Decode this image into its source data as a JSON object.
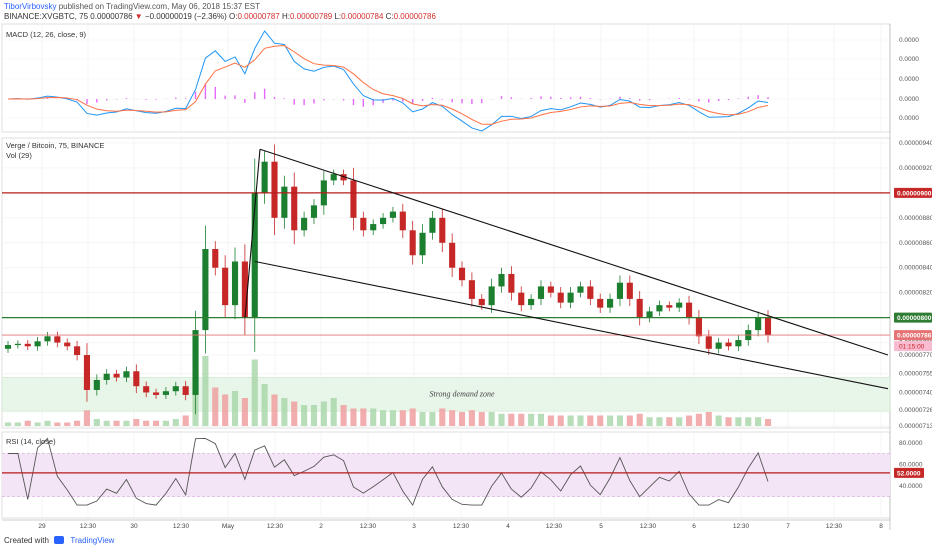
{
  "header": {
    "author": "TiborVirbovsky",
    "published_text": "published on TradingView.com, May 06, 2018 15:37 EST",
    "symbol_line": "BINANCE:XVGBTC, 75",
    "last": "0.00000786",
    "change": "−0.00000019 (−2.36%)",
    "o_label": "O:",
    "o_value": "0.00000787",
    "h_label": "H:",
    "h_value": "0.00000789",
    "l_label": "L:",
    "l_value": "0.00000784",
    "c_label": "C:",
    "c_value": "0.00000786"
  },
  "footer": {
    "created_with": "Created with",
    "brand": "TradingView"
  },
  "colors": {
    "up": "#26a69a",
    "down": "#ef5350",
    "upDark": "#1b7f2f",
    "downDark": "#c62828",
    "macd": "#2196f3",
    "signal": "#ff7043",
    "hist": "#e040fb",
    "resistance": "#b71c1c",
    "support": "#2e7d32",
    "current": "#e57373",
    "demand": "#e8f5e9",
    "rsiBand": "#f3e5f5",
    "rsiLine": "#555555"
  },
  "chart_data": [
    {
      "type": "line",
      "pane": "macd",
      "label": "MACD (12, 26, close, 9)",
      "y_tick_labels": [
        "0.0000",
        "0.0000",
        "0.0000",
        "0.0000",
        "0.0000",
        "-0.0000"
      ]
    },
    {
      "type": "candlestick",
      "pane": "price",
      "label": "Verge / Bitcoin, 75, BINANCE",
      "volume_label": "Vol (29)",
      "ylim": [
        7.115e-06,
        9.44e-06
      ],
      "y_ticks": [
        9.4e-06,
        9.2e-06,
        8.8e-06,
        8.6e-06,
        8.4e-06,
        8.2e-06,
        7.8e-06,
        7.7e-06,
        7.55e-06,
        7.4e-06,
        7.26e-06,
        7.13e-06
      ],
      "y_tick_labels": [
        "0.00000940",
        "0.00000920",
        "0.00000880",
        "0.00000860",
        "0.00000840",
        "0.00000820",
        "0.00000780",
        "0.00000770",
        "0.00000755",
        "0.00000740",
        "0.00000726",
        "0.00000713"
      ],
      "closes": [
        7.78e-06,
        7.79e-06,
        7.77e-06,
        7.81e-06,
        7.85e-06,
        7.8e-06,
        7.77e-06,
        7.7e-06,
        7.42e-06,
        7.5e-06,
        7.55e-06,
        7.52e-06,
        7.57e-06,
        7.45e-06,
        7.4e-06,
        7.38e-06,
        7.41e-06,
        7.45e-06,
        7.38e-06,
        7.9e-06,
        8.55e-06,
        8.4e-06,
        8.1e-06,
        8.45e-06,
        8e-06,
        9e-06,
        9.25e-06,
        8.8e-06,
        9.05e-06,
        8.7e-06,
        8.8e-06,
        8.9e-06,
        9.1e-06,
        9.15e-06,
        9.1e-06,
        8.8e-06,
        8.7e-06,
        8.75e-06,
        8.8e-06,
        8.85e-06,
        8.7e-06,
        8.5e-06,
        8.68e-06,
        8.8e-06,
        8.6e-06,
        8.4e-06,
        8.3e-06,
        8.15e-06,
        8.1e-06,
        8.25e-06,
        8.35e-06,
        8.2e-06,
        8.1e-06,
        8.15e-06,
        8.25e-06,
        8.2e-06,
        8.12e-06,
        8.2e-06,
        8.25e-06,
        8.15e-06,
        8.08e-06,
        8.15e-06,
        8.28e-06,
        8.15e-06,
        8e-06,
        8.05e-06,
        8.1e-06,
        8.08e-06,
        8.12e-06,
        8e-06,
        7.85e-06,
        7.75e-06,
        7.8e-06,
        7.77e-06,
        7.82e-06,
        7.9e-06,
        8e-06,
        7.86e-06
      ],
      "volume": [
        2,
        2,
        3,
        2,
        3,
        2,
        2,
        3,
        9,
        4,
        3,
        3,
        3,
        4,
        3,
        3,
        3,
        4,
        6,
        30,
        40,
        22,
        18,
        20,
        16,
        38,
        24,
        18,
        16,
        14,
        12,
        12,
        14,
        16,
        12,
        10,
        10,
        10,
        9,
        9,
        9,
        10,
        8,
        8,
        10,
        9,
        8,
        9,
        8,
        8,
        7,
        7,
        7,
        7,
        7,
        6,
        6,
        6,
        6,
        6,
        6,
        6,
        6,
        6,
        7,
        5,
        5,
        5,
        5,
        6,
        7,
        8,
        6,
        5,
        5,
        5,
        5,
        4
      ],
      "levels": [
        {
          "name": "resistance",
          "value": 9e-06,
          "label": "0.00000900"
        },
        {
          "name": "support",
          "value": 8e-06,
          "label": "0.00000800"
        },
        {
          "name": "current",
          "value": 7.86e-06,
          "label": "0.00000786"
        }
      ],
      "countdown": "01:15:00",
      "annotation": "Strong demand zone",
      "demand_zone": [
        7.25e-06,
        7.52e-06
      ]
    },
    {
      "type": "line",
      "pane": "rsi",
      "label": "RSI (14, close)",
      "ylim": [
        10,
        90
      ],
      "y_ticks": [
        80,
        60,
        52,
        40
      ],
      "y_tick_labels": [
        "80.0000",
        "60.0000",
        "52.0000",
        "40.0000"
      ],
      "level": 52,
      "band": [
        30,
        70
      ]
    }
  ],
  "x_axis": {
    "ticks": [
      {
        "label": "29",
        "x": 42
      },
      {
        "label": "12:30",
        "x": 88
      },
      {
        "label": "30",
        "x": 134
      },
      {
        "label": "12:30",
        "x": 181
      },
      {
        "label": "May",
        "x": 228
      },
      {
        "label": "12:30",
        "x": 275
      },
      {
        "label": "2",
        "x": 321
      },
      {
        "label": "12:30",
        "x": 368
      },
      {
        "label": "3",
        "x": 414
      },
      {
        "label": "12:30",
        "x": 461
      },
      {
        "label": "4",
        "x": 508
      },
      {
        "label": "12:30",
        "x": 554
      },
      {
        "label": "5",
        "x": 601
      },
      {
        "label": "12:30",
        "x": 648
      },
      {
        "label": "6",
        "x": 694
      },
      {
        "label": "12:30",
        "x": 741
      },
      {
        "label": "7",
        "x": 788
      },
      {
        "label": "12:30",
        "x": 834
      },
      {
        "label": "8",
        "x": 881
      }
    ]
  }
}
